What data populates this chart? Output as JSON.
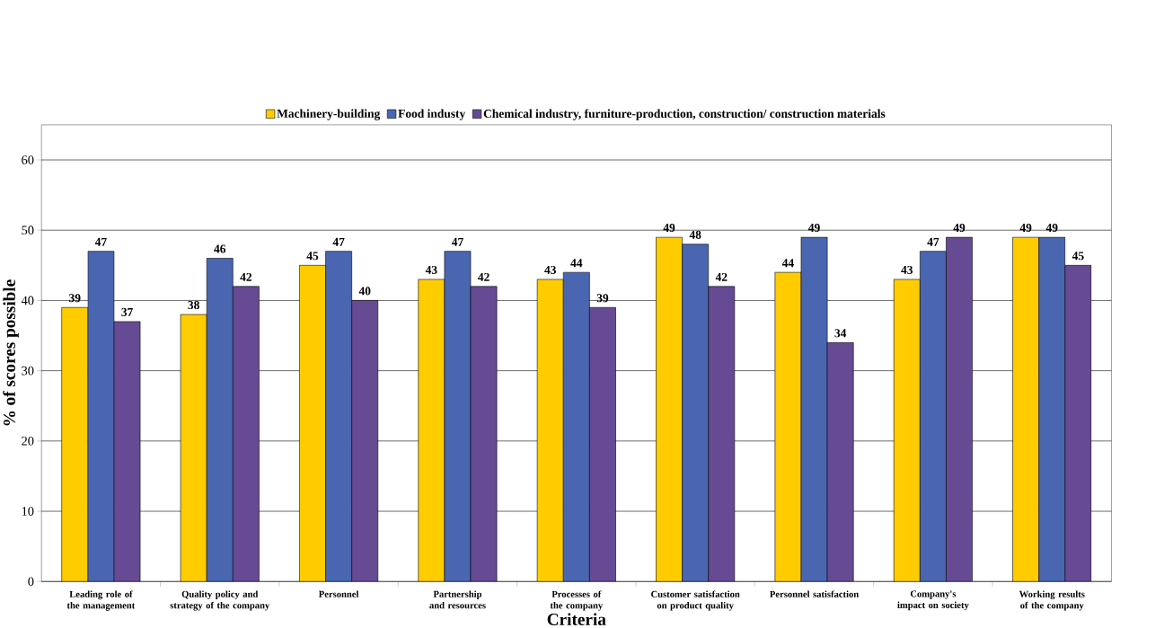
{
  "chart_data": {
    "type": "bar",
    "xlabel": "Criteria",
    "ylabel": "% of scores possible",
    "categories": [
      "Leading role of the management",
      "Quality policy and strategy of the company",
      "Personnel",
      "Partnership and resources",
      "Processes of the company",
      "Customer satisfaction on product quality",
      "Personnel satisfaction",
      "Company's impact on society",
      "Working results of the company"
    ],
    "series": [
      {
        "name": "Machinery-building",
        "color": "#ffcc00",
        "values": [
          39,
          38,
          45,
          43,
          43,
          49,
          44,
          43,
          49
        ]
      },
      {
        "name": "Food industy",
        "color": "#4a66b0",
        "values": [
          47,
          46,
          47,
          47,
          44,
          48,
          49,
          47,
          49
        ]
      },
      {
        "name": "Chemical industry, furniture-production, construction/ construction materials",
        "color": "#664a94",
        "values": [
          37,
          42,
          40,
          42,
          39,
          42,
          34,
          49,
          45
        ]
      }
    ],
    "ylim": [
      0,
      65
    ],
    "yticks": [
      0,
      10,
      20,
      30,
      40,
      50,
      60
    ],
    "grid": "y",
    "legend": "top",
    "data_labels": true
  }
}
